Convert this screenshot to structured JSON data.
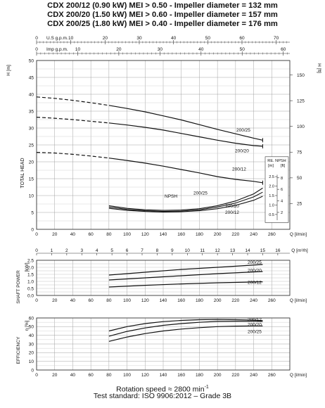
{
  "header": {
    "lines": [
      "CDX 200/12 (0.90 kW) MEI > 0.50 - Impeller diameter = 132 mm",
      "CDX 200/20 (1.50 kW) MEI > 0.60 - Impeller diameter = 157 mm",
      "CDX 200/25 (1.80 kW) MEI > 0.40 - Impeller diameter = 176 mm"
    ]
  },
  "footer": {
    "line1": "Rotation speed ≈ 2800 min",
    "line1_sup": "-1",
    "line2": "Test standard: ISO 9906:2012 – Grade 3B"
  },
  "chart_data": [
    {
      "type": "line",
      "panel": "head",
      "ylabel": "TOTAL HEAD",
      "y_unit_left": "H [m]",
      "y_unit_right": "H [ft]",
      "xlabel": "Q [l/min]",
      "xlim": [
        0,
        280
      ],
      "ylim": [
        0,
        50
      ],
      "x_ticks": [
        0,
        20,
        40,
        60,
        80,
        100,
        120,
        140,
        160,
        180,
        200,
        220,
        240,
        260
      ],
      "y_ticks": [
        0,
        5,
        10,
        15,
        20,
        25,
        30,
        35,
        40,
        45,
        50
      ],
      "y_right_ticks": [
        25,
        50,
        75,
        100,
        125,
        150
      ],
      "top_axes": [
        {
          "label": "U.S g.p.m.",
          "ticks": [
            0,
            10,
            20,
            30,
            40,
            50,
            60,
            70
          ]
        },
        {
          "label": "Imp g.p.m.",
          "ticks": [
            0,
            10,
            20,
            30,
            40,
            50,
            60
          ]
        }
      ],
      "series": [
        {
          "name": "200/25",
          "x": [
            0,
            20,
            40,
            60,
            80,
            100,
            120,
            140,
            160,
            180,
            200,
            220,
            240,
            250
          ],
          "y": [
            39.2,
            38.8,
            38.2,
            37.5,
            36.7,
            35.8,
            34.8,
            33.6,
            32.4,
            31.0,
            29.6,
            28.3,
            27.0,
            26.4
          ],
          "dashed_until": 80
        },
        {
          "name": "200/20",
          "x": [
            0,
            20,
            40,
            60,
            80,
            100,
            120,
            140,
            160,
            180,
            200,
            220,
            240,
            250
          ],
          "y": [
            33.2,
            32.9,
            32.5,
            32.0,
            31.5,
            30.9,
            30.2,
            29.4,
            28.4,
            27.4,
            26.4,
            25.5,
            24.8,
            24.6
          ],
          "dashed_until": 80
        },
        {
          "name": "200/12",
          "x": [
            0,
            20,
            40,
            60,
            80,
            100,
            120,
            140,
            160,
            180,
            200,
            220,
            240,
            250
          ],
          "y": [
            22.8,
            22.6,
            22.2,
            21.7,
            21.1,
            20.4,
            19.6,
            18.7,
            17.7,
            16.7,
            15.6,
            14.8,
            14.2,
            13.8
          ],
          "dashed_until": 80
        }
      ],
      "npsh": {
        "label": "NPSH",
        "unit": "RE. NPSH",
        "unit_left": "[m]",
        "unit_right": "[ft]",
        "scale_m": [
          0.5,
          1.0,
          1.5,
          2.0,
          2.5
        ],
        "scale_ft": [
          2,
          4,
          6,
          8
        ],
        "series": [
          {
            "name": "200/25",
            "x": [
              80,
              100,
              120,
              140,
              160,
              180,
              200,
              220,
              240,
              250
            ],
            "y": [
              7.0,
              6.2,
              5.8,
              5.6,
              5.7,
              6.1,
              7.0,
              8.4,
              10.5,
              12.2
            ]
          },
          {
            "name": "200/20",
            "x": [
              80,
              100,
              120,
              140,
              160,
              180,
              200,
              220,
              240,
              250
            ],
            "y": [
              6.6,
              5.9,
              5.5,
              5.3,
              5.4,
              5.8,
              6.6,
              7.8,
              9.6,
              11.0
            ]
          },
          {
            "name": "200/12",
            "x": [
              80,
              100,
              120,
              140,
              160,
              180,
              200,
              220,
              240,
              250
            ],
            "y": [
              6.2,
              5.6,
              5.3,
              5.1,
              5.2,
              5.5,
              6.1,
              7.1,
              8.6,
              9.8
            ]
          }
        ]
      }
    },
    {
      "type": "line",
      "panel": "power",
      "ylabel": "SHAFT POWER",
      "y_unit": "[kW]",
      "xlabel": "Q [m³/h]",
      "xlim": [
        0,
        16.8
      ],
      "ylim": [
        0,
        2.5
      ],
      "x_ticks": [
        0,
        1,
        2,
        3,
        4,
        5,
        6,
        7,
        8,
        9,
        10,
        11,
        12,
        13,
        14,
        15,
        16
      ],
      "y_ticks": [
        0,
        0.5,
        1.0,
        1.5,
        2.0,
        2.5
      ],
      "series": [
        {
          "name": "200/25",
          "x": [
            80,
            120,
            160,
            200,
            250
          ],
          "y": [
            1.45,
            1.65,
            1.85,
            2.0,
            2.2
          ]
        },
        {
          "name": "200/20",
          "x": [
            80,
            120,
            160,
            200,
            250
          ],
          "y": [
            1.1,
            1.25,
            1.4,
            1.55,
            1.7
          ]
        },
        {
          "name": "200/12",
          "x": [
            80,
            120,
            160,
            200,
            250
          ],
          "y": [
            0.6,
            0.72,
            0.82,
            0.9,
            0.97
          ]
        }
      ]
    },
    {
      "type": "line",
      "panel": "efficiency",
      "ylabel": "EFFICIENCY",
      "y_unit": "η [%]",
      "xlabel": "Q [l/min]",
      "xlim": [
        0,
        280
      ],
      "ylim": [
        0,
        60
      ],
      "x_ticks": [
        0,
        20,
        40,
        60,
        80,
        100,
        120,
        140,
        160,
        180,
        200,
        220,
        240,
        260
      ],
      "y_ticks": [
        0,
        10,
        20,
        30,
        40,
        50,
        60
      ],
      "series": [
        {
          "name": "200/12",
          "x": [
            80,
            100,
            120,
            140,
            160,
            180,
            200,
            220,
            240,
            250
          ],
          "y": [
            45,
            50,
            53.5,
            55.8,
            57.2,
            58,
            58.2,
            58,
            57.5,
            57
          ]
        },
        {
          "name": "200/20",
          "x": [
            80,
            100,
            120,
            140,
            160,
            180,
            200,
            220,
            240,
            250
          ],
          "y": [
            39,
            44.5,
            48.5,
            51.5,
            53.5,
            55,
            56,
            56.3,
            56.2,
            56
          ]
        },
        {
          "name": "200/25",
          "x": [
            80,
            100,
            120,
            140,
            160,
            180,
            200,
            220,
            240,
            250
          ],
          "y": [
            33,
            38,
            42,
            45,
            47.2,
            48.8,
            50,
            50.6,
            50.8,
            50.8
          ]
        }
      ]
    }
  ]
}
